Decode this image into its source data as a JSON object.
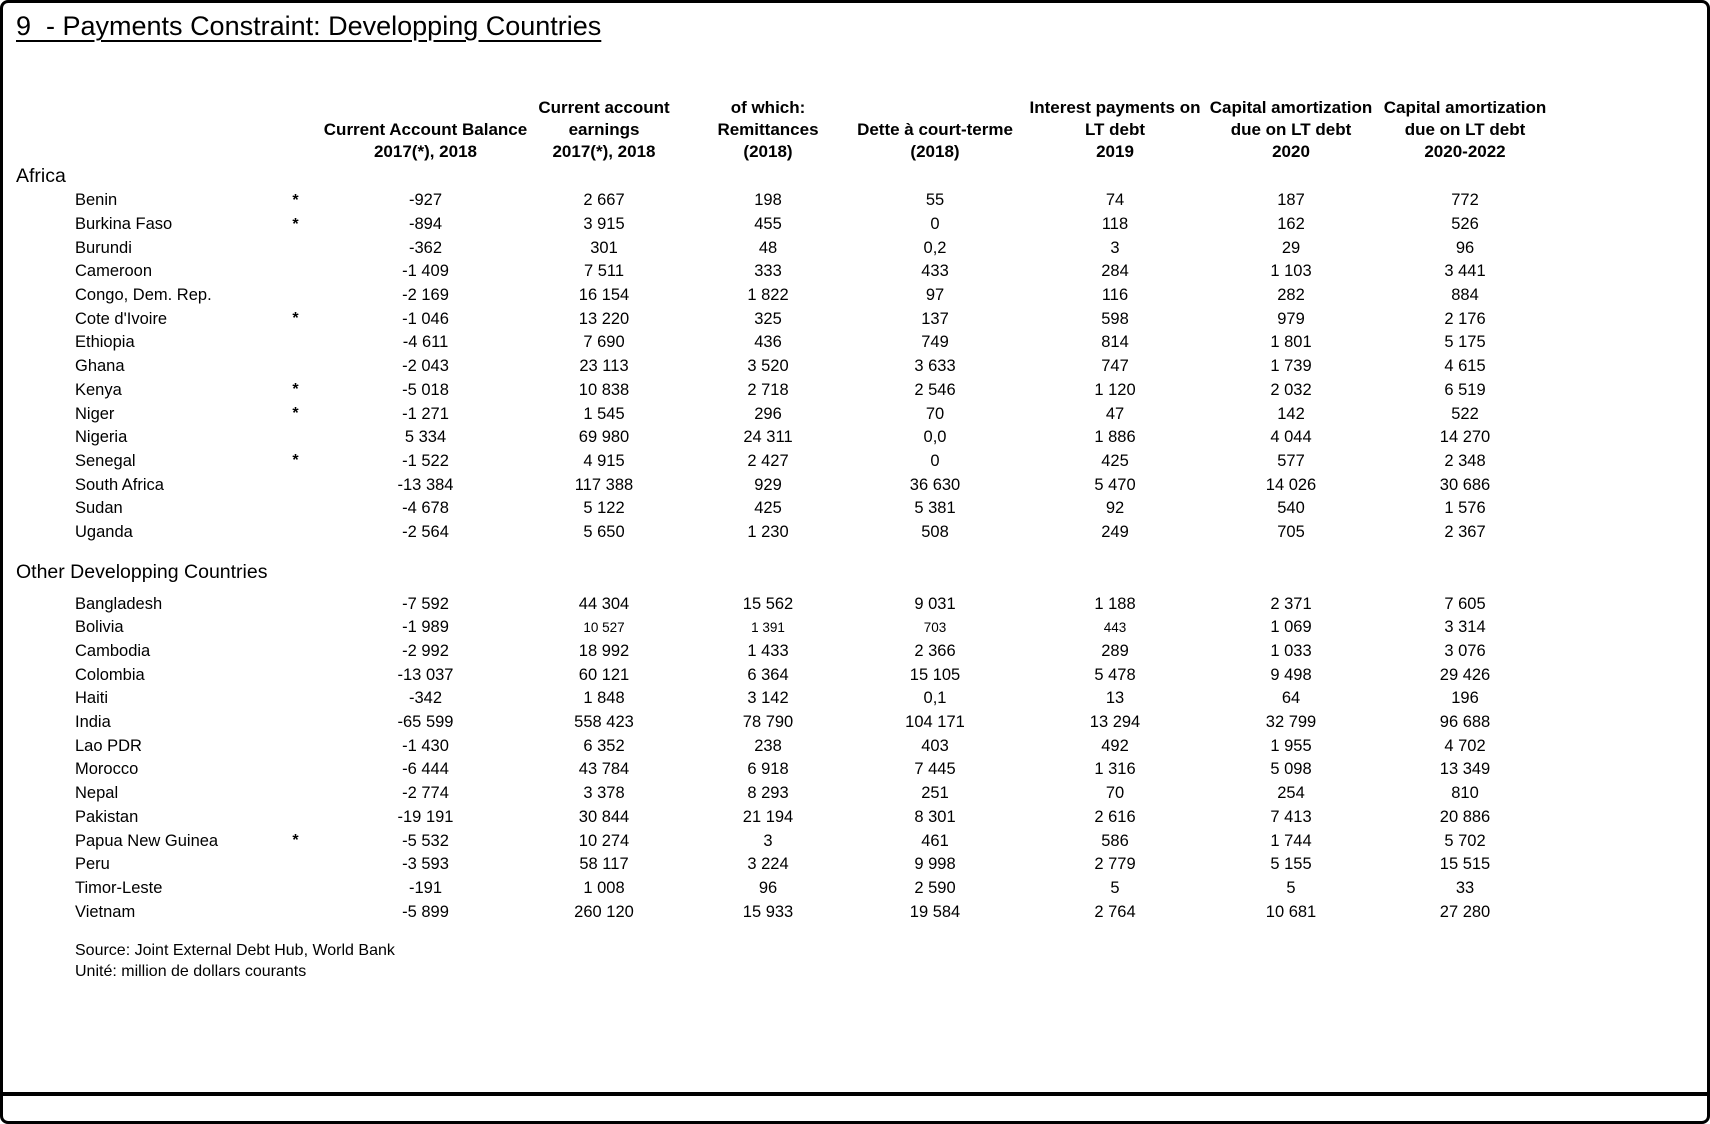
{
  "title": "9  - Payments Constraint: Developping Countries",
  "columns": [
    {
      "id": "balance",
      "lines": [
        "Current Account Balance",
        "2017(*), 2018"
      ]
    },
    {
      "id": "earnings",
      "lines": [
        "Current account",
        "earnings",
        "2017(*), 2018"
      ]
    },
    {
      "id": "remittances",
      "lines": [
        "of which:",
        "Remittances",
        "(2018)"
      ]
    },
    {
      "id": "short-term-debt",
      "lines": [
        "Dette à court-terme",
        "(2018)"
      ]
    },
    {
      "id": "interest-lt-debt-2019",
      "lines": [
        "Interest payments on",
        "LT debt",
        "2019"
      ]
    },
    {
      "id": "capital-amortization-2020",
      "lines": [
        "Capital amortization",
        "due on LT debt",
        "2020"
      ]
    },
    {
      "id": "capital-amortization-2020-2022",
      "lines": [
        "Capital amortization",
        "due on LT debt",
        "2020-2022"
      ]
    }
  ],
  "sections": [
    {
      "label": "Africa",
      "rows": [
        {
          "country": "Benin",
          "star": "*",
          "values": [
            "-927",
            "2 667",
            "198",
            "55",
            "74",
            "187",
            "772"
          ]
        },
        {
          "country": "Burkina Faso",
          "star": "*",
          "values": [
            "-894",
            "3 915",
            "455",
            "0",
            "118",
            "162",
            "526"
          ]
        },
        {
          "country": "Burundi",
          "star": "",
          "values": [
            "-362",
            "301",
            "48",
            "0,2",
            "3",
            "29",
            "96"
          ]
        },
        {
          "country": "Cameroon",
          "star": "",
          "values": [
            "-1 409",
            "7 511",
            "333",
            "433",
            "284",
            "1 103",
            "3 441"
          ]
        },
        {
          "country": "Congo, Dem. Rep.",
          "star": "",
          "values": [
            "-2 169",
            "16 154",
            "1 822",
            "97",
            "116",
            "282",
            "884"
          ]
        },
        {
          "country": "Cote d'Ivoire",
          "star": "*",
          "values": [
            "-1 046",
            "13 220",
            "325",
            "137",
            "598",
            "979",
            "2 176"
          ]
        },
        {
          "country": "Ethiopia",
          "star": "",
          "values": [
            "-4 611",
            "7 690",
            "436",
            "749",
            "814",
            "1 801",
            "5 175"
          ]
        },
        {
          "country": "Ghana",
          "star": "",
          "values": [
            "-2 043",
            "23 113",
            "3 520",
            "3 633",
            "747",
            "1 739",
            "4 615"
          ]
        },
        {
          "country": "Kenya",
          "star": "*",
          "values": [
            "-5 018",
            "10 838",
            "2 718",
            "2 546",
            "1 120",
            "2 032",
            "6 519"
          ]
        },
        {
          "country": "Niger",
          "star": "*",
          "values": [
            "-1 271",
            "1 545",
            "296",
            "70",
            "47",
            "142",
            "522"
          ]
        },
        {
          "country": "Nigeria",
          "star": "",
          "values": [
            "5 334",
            "69 980",
            "24 311",
            "0,0",
            "1 886",
            "4 044",
            "14 270"
          ]
        },
        {
          "country": "Senegal",
          "star": "*",
          "values": [
            "-1 522",
            "4 915",
            "2 427",
            "0",
            "425",
            "577",
            "2 348"
          ]
        },
        {
          "country": "South Africa",
          "star": "",
          "values": [
            "-13 384",
            "117 388",
            "929",
            "36 630",
            "5 470",
            "14 026",
            "30 686"
          ]
        },
        {
          "country": "Sudan",
          "star": "",
          "values": [
            "-4 678",
            "5 122",
            "425",
            "5 381",
            "92",
            "540",
            "1 576"
          ]
        },
        {
          "country": "Uganda",
          "star": "",
          "values": [
            "-2 564",
            "5 650",
            "1 230",
            "508",
            "249",
            "705",
            "2 367"
          ]
        }
      ]
    },
    {
      "label": "Other Developping Countries",
      "rows": [
        {
          "country": "Bangladesh",
          "star": "",
          "values": [
            "-7 592",
            "44 304",
            "15 562",
            "9 031",
            "1 188",
            "2 371",
            "7 605"
          ]
        },
        {
          "country": "Bolivia",
          "star": "",
          "values": [
            "-1 989",
            "10 527",
            "1 391",
            "703",
            "443",
            "1 069",
            "3 314"
          ],
          "small_cells": [
            1,
            2,
            3,
            4
          ]
        },
        {
          "country": "Cambodia",
          "star": "",
          "values": [
            "-2 992",
            "18 992",
            "1 433",
            "2 366",
            "289",
            "1 033",
            "3 076"
          ]
        },
        {
          "country": "Colombia",
          "star": "",
          "values": [
            "-13 037",
            "60 121",
            "6 364",
            "15 105",
            "5 478",
            "9 498",
            "29 426"
          ]
        },
        {
          "country": "Haiti",
          "star": "",
          "values": [
            "-342",
            "1 848",
            "3 142",
            "0,1",
            "13",
            "64",
            "196"
          ]
        },
        {
          "country": "India",
          "star": "",
          "values": [
            "-65 599",
            "558 423",
            "78 790",
            "104 171",
            "13 294",
            "32 799",
            "96 688"
          ]
        },
        {
          "country": "Lao PDR",
          "star": "",
          "values": [
            "-1 430",
            "6 352",
            "238",
            "403",
            "492",
            "1 955",
            "4 702"
          ]
        },
        {
          "country": "Morocco",
          "star": "",
          "values": [
            "-6 444",
            "43 784",
            "6 918",
            "7 445",
            "1 316",
            "5 098",
            "13 349"
          ]
        },
        {
          "country": "Nepal",
          "star": "",
          "values": [
            "-2 774",
            "3 378",
            "8 293",
            "251",
            "70",
            "254",
            "810"
          ]
        },
        {
          "country": "Pakistan",
          "star": "",
          "values": [
            "-19 191",
            "30 844",
            "21 194",
            "8 301",
            "2 616",
            "7 413",
            "20 886"
          ]
        },
        {
          "country": "Papua New Guinea",
          "star": "*",
          "values": [
            "-5 532",
            "10 274",
            "3",
            "461",
            "586",
            "1 744",
            "5 702"
          ]
        },
        {
          "country": "Peru",
          "star": "",
          "values": [
            "-3 593",
            "58 117",
            "3 224",
            "9 998",
            "2 779",
            "5 155",
            "15 515"
          ]
        },
        {
          "country": "Timor-Leste",
          "star": "",
          "values": [
            "-191",
            "1 008",
            "96",
            "2 590",
            "5",
            "5",
            "33"
          ]
        },
        {
          "country": "Vietnam",
          "star": "",
          "values": [
            "-5 899",
            "260 120",
            "15 933",
            "19 584",
            "2 764",
            "10 681",
            "27 280"
          ]
        }
      ]
    }
  ],
  "footer": {
    "source": "Source: Joint External Debt Hub, World Bank",
    "unit": "Unité: million de dollars courants"
  }
}
